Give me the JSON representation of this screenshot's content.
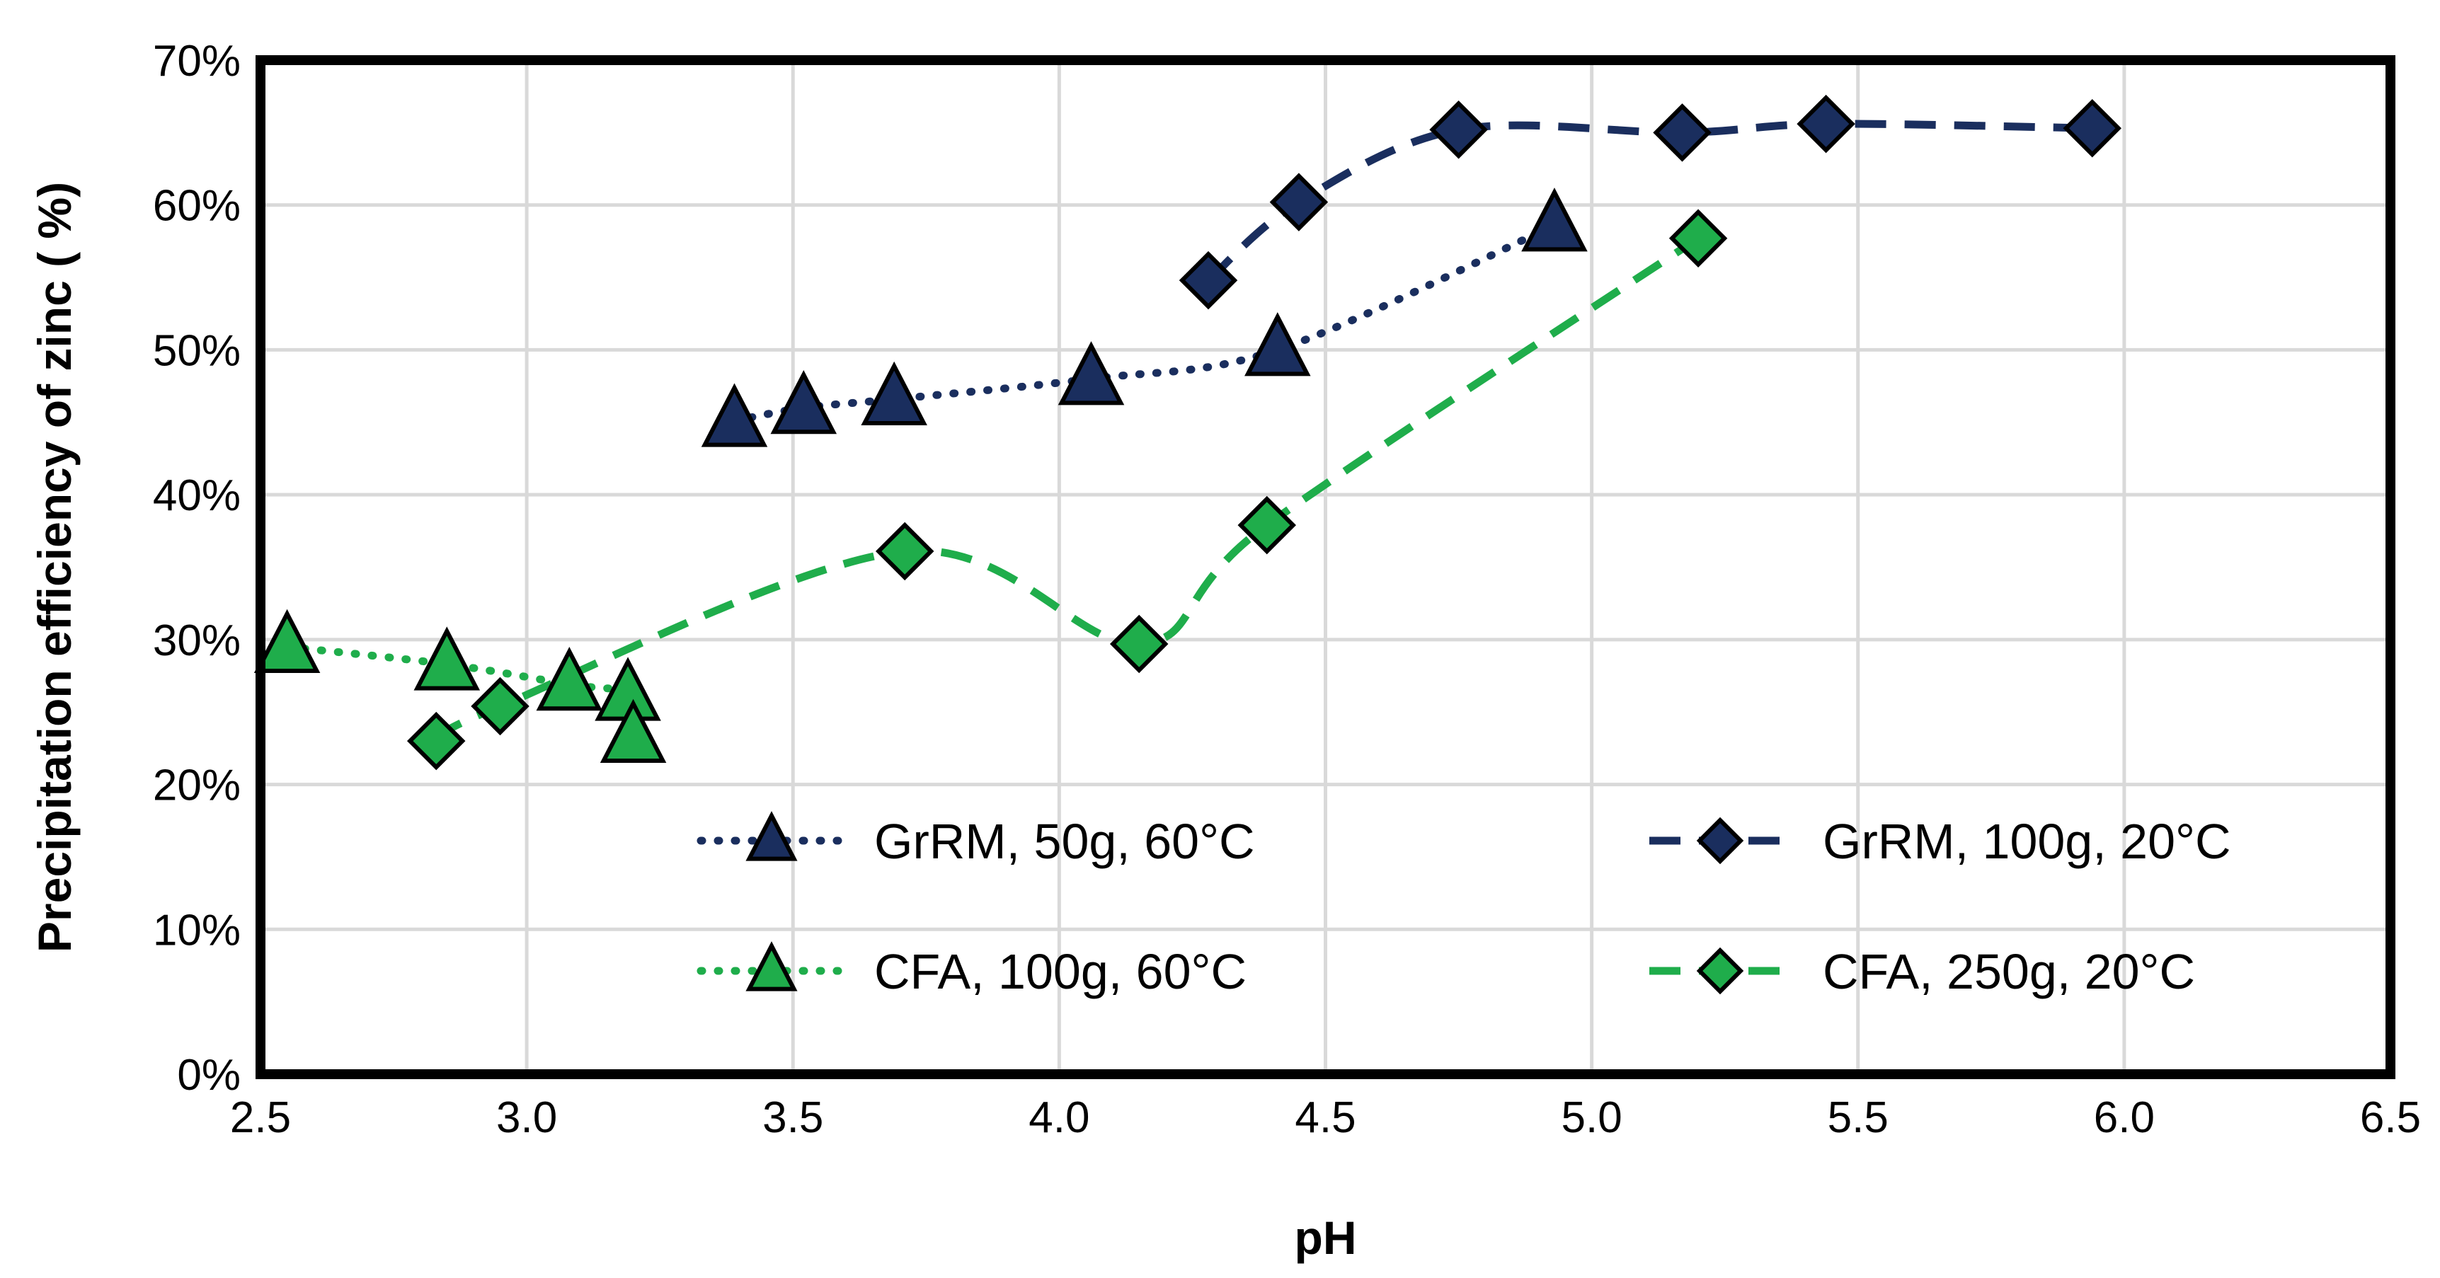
{
  "chart_data": {
    "type": "scatter",
    "title": "",
    "xlabel": "pH",
    "ylabel": "Precipitation efficiency of zinc ( %)",
    "xlim": [
      2.5,
      6.5
    ],
    "ylim": [
      0,
      70
    ],
    "xticks": [
      2.5,
      3.0,
      3.5,
      4.0,
      4.5,
      5.0,
      5.5,
      6.0,
      6.5
    ],
    "xtick_labels": [
      "2.5",
      "3.0",
      "3.5",
      "4.0",
      "4.5",
      "5.0",
      "5.5",
      "6.0",
      "6.5"
    ],
    "yticks": [
      0,
      10,
      20,
      30,
      40,
      50,
      60,
      70
    ],
    "ytick_labels": [
      "0%",
      "10%",
      "20%",
      "30%",
      "40%",
      "50%",
      "60%",
      "70%"
    ],
    "grid": true,
    "legend_position": "inside-bottom",
    "series": [
      {
        "name": "GrRM, 50g, 60°C",
        "marker": "triangle",
        "line": "dotted",
        "color": "#1a2e5e",
        "x": [
          3.39,
          3.52,
          3.69,
          4.06,
          4.41,
          4.93
        ],
        "y": [
          45.1,
          46.0,
          46.6,
          48.0,
          50.0,
          58.6
        ]
      },
      {
        "name": "GrRM, 100g, 20°C",
        "marker": "diamond",
        "line": "dashed",
        "color": "#1a2e5e",
        "x": [
          4.28,
          4.45,
          4.75,
          5.17,
          5.44,
          5.94
        ],
        "y": [
          54.8,
          60.2,
          65.2,
          65.0,
          65.6,
          65.3
        ]
      },
      {
        "name": "CFA, 100g, 60°C",
        "marker": "triangle",
        "line": "dotted",
        "color": "#1fad4b",
        "x": [
          2.55,
          2.85,
          3.08,
          3.19,
          3.2
        ],
        "y": [
          29.5,
          28.3,
          26.9,
          26.2,
          23.3
        ]
      },
      {
        "name": "CFA, 250g, 20°C",
        "marker": "diamond",
        "line": "dashed",
        "color": "#1fad4b",
        "x": [
          2.83,
          2.95,
          3.71,
          4.15,
          4.39,
          5.2
        ],
        "y": [
          23.0,
          25.4,
          36.1,
          29.7,
          37.9,
          57.7
        ]
      }
    ]
  }
}
